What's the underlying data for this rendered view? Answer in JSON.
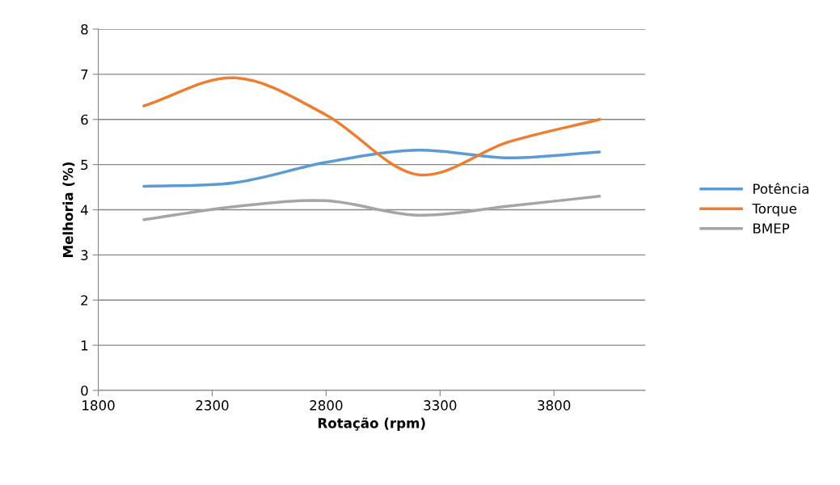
{
  "chart_data": {
    "type": "line",
    "xlabel": "Rotação (rpm)",
    "ylabel": "Melhoria (%)",
    "x": [
      2000,
      2400,
      2800,
      3200,
      3600,
      4000
    ],
    "series": [
      {
        "name": "Potência",
        "color": "#5b9bd5",
        "values": [
          4.52,
          4.6,
          5.05,
          5.32,
          5.15,
          5.28
        ]
      },
      {
        "name": "Torque",
        "color": "#ed7d31",
        "values": [
          6.3,
          6.92,
          6.1,
          4.78,
          5.5,
          6.0
        ]
      },
      {
        "name": "BMEP",
        "color": "#a5a5a5",
        "values": [
          3.78,
          4.07,
          4.2,
          3.88,
          4.08,
          4.3
        ]
      }
    ],
    "xlim": [
      1800,
      4200
    ],
    "xticks": [
      1800,
      2300,
      2800,
      3300,
      3800
    ],
    "ylim": [
      0,
      8
    ],
    "yticks": [
      0,
      1,
      2,
      3,
      4,
      5,
      6,
      7,
      8
    ],
    "grid": "y",
    "legend": "right",
    "marker": "none",
    "line_style": "solid"
  }
}
